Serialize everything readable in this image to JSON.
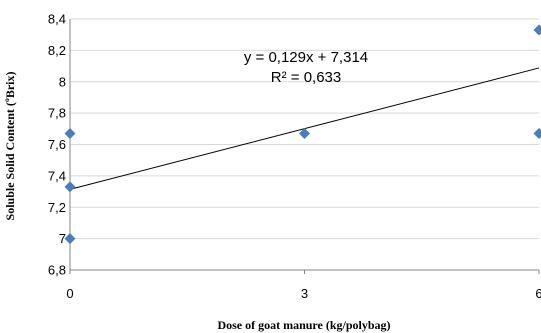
{
  "chart_data": {
    "type": "scatter",
    "xlabel": "Dose of goat manure (kg/polybag)",
    "ylabel": "Soluble Solid Content (ºBrix)",
    "x_ticks": [
      "0",
      "3",
      "6"
    ],
    "y_ticks": [
      "6,8",
      "7",
      "7,2",
      "7,4",
      "7,6",
      "7,8",
      "8",
      "8,2",
      "8,4"
    ],
    "xlim": [
      0,
      6
    ],
    "ylim": [
      6.8,
      8.4
    ],
    "grid": "horizontal",
    "points": [
      {
        "x": 0,
        "y": 7.0
      },
      {
        "x": 0,
        "y": 7.33
      },
      {
        "x": 0,
        "y": 7.67
      },
      {
        "x": 3,
        "y": 7.67
      },
      {
        "x": 6,
        "y": 7.67
      },
      {
        "x": 6,
        "y": 8.33
      }
    ],
    "trendline": {
      "slope": 0.129,
      "intercept": 7.314,
      "equation": "y = 0,129x + 7,314",
      "r2_label": "R² = 0,633"
    },
    "colors": {
      "marker": "#4a7ebb",
      "trendline": "#000000",
      "grid": "#d9d9d9",
      "axis": "#868686"
    }
  }
}
